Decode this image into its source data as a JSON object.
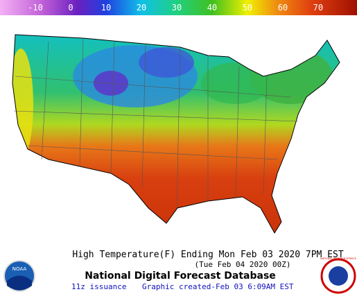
{
  "colorbar": {
    "lim": [
      -20,
      81
    ],
    "ticks": [
      -10,
      0,
      10,
      20,
      30,
      40,
      50,
      60,
      70
    ],
    "color_stops": [
      {
        "value": -20,
        "color": "#f4b0f4"
      },
      {
        "value": -8,
        "color": "#c060d8"
      },
      {
        "value": 2,
        "color": "#6a20c0"
      },
      {
        "value": 10,
        "color": "#2040e0"
      },
      {
        "value": 20,
        "color": "#10c0e8"
      },
      {
        "value": 30,
        "color": "#20d080"
      },
      {
        "value": 40,
        "color": "#40c020"
      },
      {
        "value": 50,
        "color": "#f0f000"
      },
      {
        "value": 58,
        "color": "#f09010"
      },
      {
        "value": 68,
        "color": "#e04010"
      },
      {
        "value": 81,
        "color": "#a01000"
      }
    ]
  },
  "title": "High Temperature(F) Ending Mon Feb 03 2020  7PM EST",
  "subtitle": "(Tue Feb 04 2020 00Z)",
  "database": "National Digital Forecast Database",
  "issuance": "11z issuance",
  "created": "Graphic created-Feb 03  6:09AM EST",
  "logos": {
    "left": "NOAA",
    "right": "NATIONAL WEATHER SERVICE"
  }
}
